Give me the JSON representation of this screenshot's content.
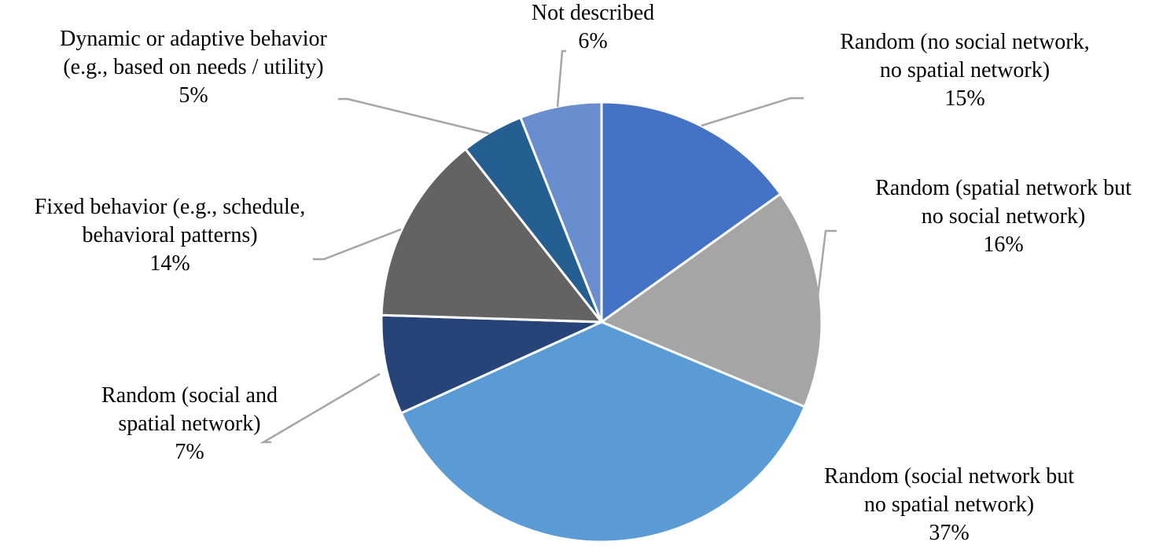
{
  "chart_data": {
    "type": "pie",
    "slices": [
      {
        "label": "Random (no social network,\nno spatial network)",
        "pct_text": "15%",
        "value": 15.1,
        "color": "#4472c4"
      },
      {
        "label": "Random (spatial network but\nno social network)",
        "pct_text": "16%",
        "value": 16.2,
        "color": "#a5a5a5"
      },
      {
        "label": "Random (social network but\nno spatial network)",
        "pct_text": "37%",
        "value": 36.9,
        "color": "#5b9bd5"
      },
      {
        "label": "Random (social and\nspatial network)",
        "pct_text": "7%",
        "value": 7.3,
        "color": "#264478"
      },
      {
        "label": "Fixed behavior (e.g., schedule,\nbehavioral patterns)",
        "pct_text": "14%",
        "value": 13.9,
        "color": "#636363"
      },
      {
        "label": "Dynamic or adaptive behavior\n(e.g., based on needs / utility)",
        "pct_text": "5%",
        "value": 4.6,
        "color": "#255e91"
      },
      {
        "label": "Not described",
        "pct_text": "6%",
        "value": 6.0,
        "color": "#698ed0"
      }
    ],
    "start_angle": "12 o'clock",
    "direction": "clockwise",
    "legend": "none",
    "data_labels": "outside with leader lines"
  }
}
